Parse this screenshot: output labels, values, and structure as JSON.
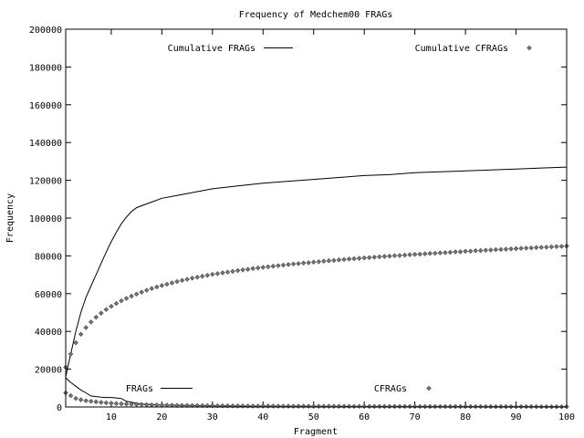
{
  "chart_data": {
    "type": "line",
    "title": "Frequency of Medchem00 FRAGs",
    "xlabel": "Fragment",
    "ylabel": "Frequency",
    "xlim": [
      1,
      100
    ],
    "ylim": [
      0,
      200000
    ],
    "xticks": [
      10,
      20,
      30,
      40,
      50,
      60,
      70,
      80,
      90,
      100
    ],
    "yticks": [
      0,
      20000,
      40000,
      60000,
      80000,
      100000,
      120000,
      140000,
      160000,
      180000,
      200000
    ],
    "grid": false,
    "legend": [
      {
        "label": "Cumulative FRAGs",
        "style": "line"
      },
      {
        "label": "Cumulative CFRAGs",
        "style": "diamond"
      },
      {
        "label": "FRAGs",
        "style": "line"
      },
      {
        "label": "CFRAGs",
        "style": "diamond"
      }
    ],
    "series": [
      {
        "name": "Cumulative FRAGs",
        "style": "line",
        "x": [
          1,
          2,
          3,
          4,
          5,
          6,
          7,
          8,
          9,
          10,
          11,
          12,
          13,
          14,
          15,
          16,
          18,
          20,
          22,
          25,
          30,
          35,
          40,
          45,
          50,
          55,
          60,
          65,
          70,
          75,
          80,
          85,
          90,
          95,
          100
        ],
        "y": [
          16000,
          28000,
          40000,
          50000,
          58000,
          64000,
          70000,
          76000,
          82000,
          87500,
          92500,
          97000,
          100500,
          103500,
          105500,
          106500,
          108500,
          110500,
          111500,
          113000,
          115500,
          117000,
          118500,
          119500,
          120500,
          121500,
          122500,
          123000,
          124000,
          124500,
          125000,
          125500,
          126000,
          126500,
          127000
        ]
      },
      {
        "name": "Cumulative CFRAGs",
        "style": "diamond",
        "x": [
          1,
          2,
          3,
          4,
          5,
          6,
          7,
          8,
          9,
          10,
          11,
          12,
          13,
          14,
          15,
          16,
          17,
          18,
          19,
          20,
          21,
          22,
          23,
          24,
          25,
          26,
          27,
          28,
          29,
          30,
          31,
          32,
          33,
          34,
          35,
          36,
          37,
          38,
          39,
          40,
          41,
          42,
          43,
          44,
          45,
          46,
          47,
          48,
          49,
          50,
          51,
          52,
          53,
          54,
          55,
          56,
          57,
          58,
          59,
          60,
          61,
          62,
          63,
          64,
          65,
          66,
          67,
          68,
          69,
          70,
          71,
          72,
          73,
          74,
          75,
          76,
          77,
          78,
          79,
          80,
          81,
          82,
          83,
          84,
          85,
          86,
          87,
          88,
          89,
          90,
          91,
          92,
          93,
          94,
          95,
          96,
          97,
          98,
          99,
          100
        ],
        "y": [
          21000,
          28000,
          34000,
          38500,
          42000,
          45000,
          47500,
          49700,
          51600,
          53300,
          54800,
          56200,
          57500,
          58700,
          59800,
          60800,
          61800,
          62700,
          63500,
          64300,
          65000,
          65700,
          66400,
          67000,
          67600,
          68200,
          68700,
          69200,
          69700,
          70200,
          70600,
          71000,
          71400,
          71800,
          72200,
          72600,
          72900,
          73300,
          73600,
          73900,
          74200,
          74500,
          74800,
          75100,
          75400,
          75700,
          75900,
          76200,
          76400,
          76700,
          76900,
          77200,
          77400,
          77600,
          77900,
          78100,
          78300,
          78500,
          78700,
          78900,
          79100,
          79300,
          79500,
          79700,
          79900,
          80100,
          80200,
          80400,
          80600,
          80800,
          80900,
          81100,
          81300,
          81400,
          81600,
          81700,
          81900,
          82100,
          82200,
          82400,
          82500,
          82700,
          82800,
          83000,
          83100,
          83300,
          83400,
          83500,
          83700,
          83800,
          84000,
          84100,
          84200,
          84400,
          84500,
          84600,
          84800,
          84900,
          85000,
          85200
        ]
      },
      {
        "name": "FRAGs",
        "style": "line",
        "x": [
          1,
          2,
          3,
          4,
          5,
          6,
          7,
          8,
          9,
          10,
          11,
          12,
          13,
          14,
          15,
          16,
          18,
          20,
          25,
          30,
          40,
          50,
          60,
          70,
          80,
          90,
          100
        ],
        "y": [
          15500,
          13000,
          11000,
          9000,
          7500,
          5800,
          5500,
          5200,
          5000,
          5000,
          4800,
          4500,
          3000,
          2500,
          2000,
          1600,
          1300,
          1000,
          800,
          600,
          400,
          300,
          200,
          200,
          100,
          100,
          100
        ]
      },
      {
        "name": "CFRAGs",
        "style": "diamond",
        "x": [
          1,
          2,
          3,
          4,
          5,
          6,
          7,
          8,
          9,
          10,
          11,
          12,
          13,
          14,
          15,
          16,
          17,
          18,
          19,
          20,
          21,
          22,
          23,
          24,
          25,
          26,
          27,
          28,
          29,
          30,
          31,
          32,
          33,
          34,
          35,
          36,
          37,
          38,
          39,
          40,
          41,
          42,
          43,
          44,
          45,
          46,
          47,
          48,
          49,
          50,
          51,
          52,
          53,
          54,
          55,
          56,
          57,
          58,
          59,
          60,
          61,
          62,
          63,
          64,
          65,
          66,
          67,
          68,
          69,
          70,
          71,
          72,
          73,
          74,
          75,
          76,
          77,
          78,
          79,
          80,
          81,
          82,
          83,
          84,
          85,
          86,
          87,
          88,
          89,
          90,
          91,
          92,
          93,
          94,
          95,
          96,
          97,
          98,
          99,
          100
        ],
        "y": [
          7500,
          6000,
          4500,
          3800,
          3300,
          3000,
          2700,
          2400,
          2200,
          2000,
          1800,
          1700,
          1600,
          1500,
          1400,
          1300,
          1200,
          1100,
          1050,
          1000,
          950,
          900,
          850,
          800,
          780,
          750,
          720,
          700,
          680,
          650,
          630,
          610,
          590,
          570,
          550,
          530,
          510,
          500,
          490,
          480,
          470,
          460,
          450,
          440,
          430,
          420,
          410,
          400,
          390,
          380,
          370,
          360,
          350,
          345,
          340,
          335,
          330,
          325,
          320,
          315,
          310,
          305,
          300,
          295,
          290,
          285,
          280,
          275,
          270,
          265,
          260,
          255,
          250,
          245,
          240,
          235,
          230,
          225,
          220,
          215,
          210,
          205,
          200,
          200,
          195,
          190,
          185,
          180,
          175,
          170,
          165,
          160,
          155,
          150,
          145,
          140,
          135,
          130,
          125,
          120
        ]
      }
    ]
  }
}
